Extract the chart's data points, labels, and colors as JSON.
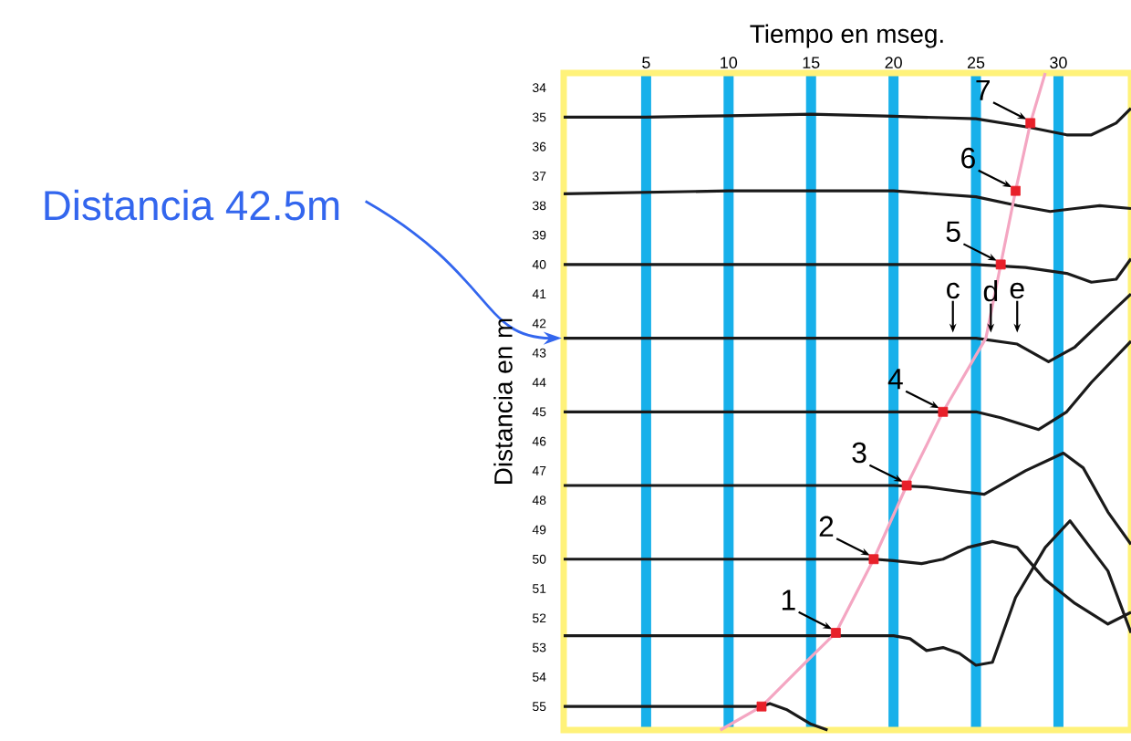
{
  "chart_data": {
    "type": "line",
    "xlabel": "Tiempo en mseg.",
    "ylabel": "Distancia en m",
    "xlim": [
      0,
      34.4
    ],
    "ylim": [
      55.8,
      33.5
    ],
    "xticks": [
      5,
      10,
      15,
      20,
      25,
      30
    ],
    "yticks": [
      34,
      35,
      36,
      37,
      38,
      39,
      40,
      41,
      42,
      43,
      44,
      45,
      46,
      47,
      48,
      49,
      50,
      51,
      52,
      53,
      54,
      55
    ],
    "grid": "x",
    "series": [
      {
        "type": "line",
        "color": "#1a1a1a",
        "x": [
          0,
          5,
          10,
          15,
          20,
          25,
          28.3,
          30.5,
          32,
          33.5,
          34.4
        ],
        "values": [
          35.0,
          35.0,
          34.95,
          34.9,
          34.97,
          35.05,
          35.35,
          35.6,
          35.6,
          35.2,
          34.7
        ]
      },
      {
        "type": "line",
        "color": "#1a1a1a",
        "x": [
          0,
          10,
          20,
          25,
          27.5,
          29.5,
          31,
          32.5,
          34.4
        ],
        "values": [
          37.6,
          37.5,
          37.5,
          37.7,
          38.0,
          38.2,
          38.1,
          38.0,
          38.1
        ]
      },
      {
        "type": "line",
        "color": "#1a1a1a",
        "x": [
          0,
          10,
          20,
          25,
          28,
          30.5,
          32,
          33.5,
          34.4
        ],
        "values": [
          40.0,
          40.0,
          40.0,
          40.0,
          40.1,
          40.3,
          40.6,
          40.5,
          39.8
        ]
      },
      {
        "type": "line",
        "color": "#1a1a1a",
        "x": [
          0,
          10,
          20,
          25,
          27.5,
          29.4,
          31,
          32.5,
          34.4
        ],
        "values": [
          42.5,
          42.5,
          42.5,
          42.5,
          42.7,
          43.3,
          42.8,
          42.0,
          41.0
        ]
      },
      {
        "type": "line",
        "color": "#1a1a1a",
        "x": [
          0,
          10,
          20,
          25,
          26.5,
          28.8,
          30.5,
          32,
          34.4
        ],
        "values": [
          45.0,
          45.0,
          45.0,
          45.0,
          45.2,
          45.6,
          45.0,
          44.0,
          42.6
        ]
      },
      {
        "type": "line",
        "color": "#1a1a1a",
        "x": [
          0,
          10,
          20,
          22,
          24,
          25.5,
          28,
          30.3,
          31.5,
          33,
          34.4
        ],
        "values": [
          47.5,
          47.5,
          47.5,
          47.55,
          47.7,
          47.8,
          47.0,
          46.4,
          46.9,
          48.4,
          49.5
        ]
      },
      {
        "type": "line",
        "color": "#1a1a1a",
        "x": [
          0,
          10,
          18.8,
          20,
          21.7,
          23,
          24.5,
          26,
          27.5,
          29.2,
          31,
          33,
          34.4
        ],
        "values": [
          50.0,
          50.0,
          50.0,
          50.05,
          50.15,
          50.0,
          49.6,
          49.4,
          49.6,
          50.7,
          51.5,
          52.2,
          51.8
        ]
      },
      {
        "type": "line",
        "color": "#1a1a1a",
        "x": [
          0,
          10,
          16.5,
          20,
          21,
          22,
          23,
          24,
          25,
          26,
          27.4,
          29.2,
          30.7,
          33,
          34.4
        ],
        "values": [
          52.6,
          52.6,
          52.6,
          52.6,
          52.7,
          53.1,
          53.0,
          53.2,
          53.6,
          53.5,
          51.3,
          49.6,
          48.7,
          50.4,
          52.5
        ]
      },
      {
        "type": "line",
        "color": "#1a1a1a",
        "x": [
          0,
          5,
          10,
          12,
          12.5,
          13.5,
          15,
          16
        ],
        "values": [
          55.0,
          55.0,
          55.0,
          55.0,
          54.9,
          55.1,
          55.6,
          55.8
        ]
      },
      {
        "type": "line",
        "color": "#f4a6c2",
        "x": [
          9.5,
          12.0,
          14.5,
          16.5,
          18.8,
          20.8,
          23.0,
          25.6,
          26.5,
          27.4,
          28.3,
          29.2
        ],
        "values": [
          55.8,
          55.0,
          53.6,
          52.5,
          50.0,
          47.5,
          45.0,
          42.5,
          40.0,
          37.5,
          35.2,
          33.5
        ]
      },
      {
        "type": "scatter",
        "color": "#e8202a",
        "marker": "square",
        "x": [
          12.0,
          16.5,
          18.8,
          20.8,
          23.0,
          26.5,
          27.4,
          28.3
        ],
        "values": [
          55.0,
          52.5,
          50.0,
          47.5,
          45.0,
          40.0,
          37.5,
          35.2
        ]
      }
    ],
    "annotations": [
      {
        "text": "1",
        "x": 16.5,
        "y": 52.5
      },
      {
        "text": "2",
        "x": 18.8,
        "y": 50.0
      },
      {
        "text": "3",
        "x": 20.8,
        "y": 47.5
      },
      {
        "text": "4",
        "x": 23.0,
        "y": 45.0
      },
      {
        "text": "5",
        "x": 26.5,
        "y": 40.0
      },
      {
        "text": "6",
        "x": 27.4,
        "y": 37.5
      },
      {
        "text": "7",
        "x": 28.3,
        "y": 35.2
      },
      {
        "text": "c",
        "x": 23.6,
        "y": 42.5
      },
      {
        "text": "d",
        "x": 25.9,
        "y": 42.5
      },
      {
        "text": "e",
        "x": 27.5,
        "y": 42.5
      },
      {
        "text": "Distancia 42.5m",
        "x": 0,
        "y": 42.5
      }
    ]
  }
}
